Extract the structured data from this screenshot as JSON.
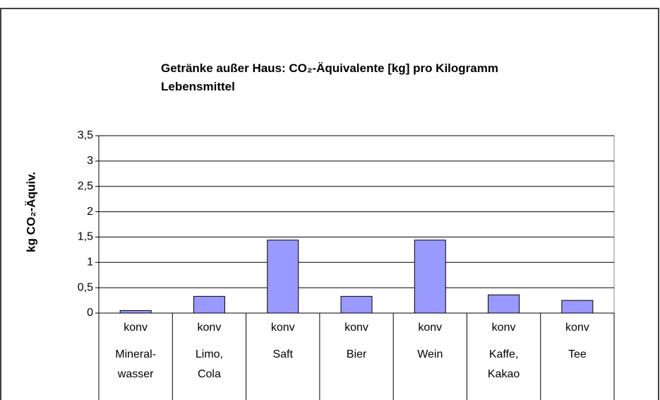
{
  "chart_data": {
    "type": "bar",
    "title": [
      "Getränke außer Haus: CO₂-Äquivalente [kg] pro Kilogramm",
      "Lebensmittel"
    ],
    "y_label": "kg CO₂-Äquiv.",
    "categories": [
      {
        "level1": "konv",
        "level2": [
          "Mineral-",
          "wasser"
        ]
      },
      {
        "level1": "konv",
        "level2": [
          "Limo,",
          "Cola"
        ]
      },
      {
        "level1": "konv",
        "level2": [
          "Saft"
        ]
      },
      {
        "level1": "konv",
        "level2": [
          "Bier"
        ]
      },
      {
        "level1": "konv",
        "level2": [
          "Wein"
        ]
      },
      {
        "level1": "konv",
        "level2": [
          "Kaffe,",
          "Kakao"
        ]
      },
      {
        "level1": "konv",
        "level2": [
          "Tee"
        ]
      }
    ],
    "values": [
      0.05,
      0.33,
      1.44,
      0.33,
      1.44,
      0.36,
      0.25
    ],
    "color": "#9999ff",
    "ylim": [
      0,
      3.5
    ],
    "yticks": [
      0,
      {
        "value": 0.5,
        "label": "0,5"
      },
      1,
      {
        "value": 1.5,
        "label": "1,5"
      },
      2,
      {
        "value": 2.5,
        "label": "2,5"
      },
      3,
      {
        "value": 3.5,
        "label": "3,5"
      }
    ],
    "grid": true
  }
}
